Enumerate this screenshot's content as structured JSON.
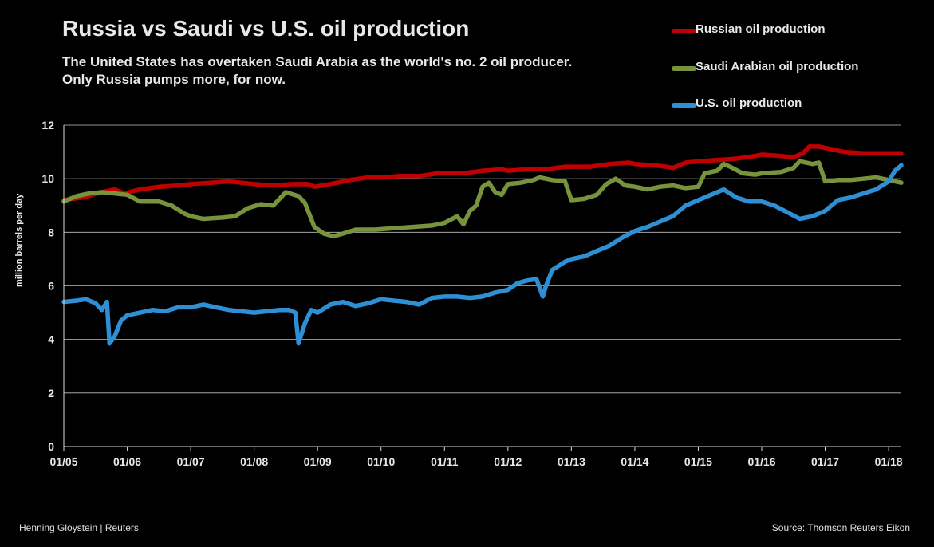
{
  "header": {
    "title": "Russia vs Saudi vs U.S. oil production",
    "subtitle_line1": "The United States has overtaken Saudi Arabia as the world's no. 2 oil producer.",
    "subtitle_line2": "Only Russia pumps more, for now."
  },
  "footer": {
    "credit": "Henning Gloystein | Reuters",
    "source": "Source: Thomson Reuters Eikon"
  },
  "colors": {
    "russia": "#c00000",
    "saudi": "#77933c",
    "us": "#2e8fd4",
    "grid": "#bfbfbf",
    "background": "#000000"
  },
  "chart_data": {
    "type": "line",
    "title": "Russia vs Saudi vs U.S. oil production",
    "xlabel": "",
    "ylabel": "million barrels per day",
    "ylim": [
      0,
      12
    ],
    "yticks": [
      0,
      2,
      4,
      6,
      8,
      10,
      12
    ],
    "xlim": [
      2005.0,
      2018.2
    ],
    "xticks": [
      {
        "value": 2005,
        "label": "01/05"
      },
      {
        "value": 2006,
        "label": "01/06"
      },
      {
        "value": 2007,
        "label": "01/07"
      },
      {
        "value": 2008,
        "label": "01/08"
      },
      {
        "value": 2009,
        "label": "01/09"
      },
      {
        "value": 2010,
        "label": "01/10"
      },
      {
        "value": 2011,
        "label": "01/11"
      },
      {
        "value": 2012,
        "label": "01/12"
      },
      {
        "value": 2013,
        "label": "01/13"
      },
      {
        "value": 2014,
        "label": "01/14"
      },
      {
        "value": 2015,
        "label": "01/15"
      },
      {
        "value": 2016,
        "label": "01/16"
      },
      {
        "value": 2017,
        "label": "01/17"
      },
      {
        "value": 2018,
        "label": "01/18"
      }
    ],
    "grid": "horizontal",
    "legend_position": "top-right",
    "series": [
      {
        "name": "Russian oil production",
        "key": "russia",
        "points": [
          [
            2005.0,
            9.2
          ],
          [
            2005.3,
            9.3
          ],
          [
            2005.6,
            9.5
          ],
          [
            2005.8,
            9.6
          ],
          [
            2005.95,
            9.45
          ],
          [
            2006.2,
            9.6
          ],
          [
            2006.5,
            9.7
          ],
          [
            2006.8,
            9.75
          ],
          [
            2007.0,
            9.8
          ],
          [
            2007.3,
            9.85
          ],
          [
            2007.6,
            9.9
          ],
          [
            2007.8,
            9.85
          ],
          [
            2008.0,
            9.8
          ],
          [
            2008.3,
            9.75
          ],
          [
            2008.6,
            9.8
          ],
          [
            2008.85,
            9.8
          ],
          [
            2008.95,
            9.7
          ],
          [
            2009.2,
            9.8
          ],
          [
            2009.5,
            9.95
          ],
          [
            2009.8,
            10.05
          ],
          [
            2010.0,
            10.05
          ],
          [
            2010.3,
            10.1
          ],
          [
            2010.6,
            10.1
          ],
          [
            2010.9,
            10.2
          ],
          [
            2011.0,
            10.2
          ],
          [
            2011.3,
            10.2
          ],
          [
            2011.6,
            10.3
          ],
          [
            2011.9,
            10.35
          ],
          [
            2012.0,
            10.3
          ],
          [
            2012.3,
            10.35
          ],
          [
            2012.6,
            10.35
          ],
          [
            2012.9,
            10.45
          ],
          [
            2013.0,
            10.45
          ],
          [
            2013.3,
            10.45
          ],
          [
            2013.6,
            10.55
          ],
          [
            2013.9,
            10.6
          ],
          [
            2014.0,
            10.55
          ],
          [
            2014.3,
            10.5
          ],
          [
            2014.5,
            10.45
          ],
          [
            2014.6,
            10.4
          ],
          [
            2014.8,
            10.6
          ],
          [
            2015.0,
            10.65
          ],
          [
            2015.3,
            10.7
          ],
          [
            2015.6,
            10.75
          ],
          [
            2015.9,
            10.85
          ],
          [
            2016.0,
            10.9
          ],
          [
            2016.3,
            10.85
          ],
          [
            2016.5,
            10.8
          ],
          [
            2016.65,
            10.95
          ],
          [
            2016.75,
            11.2
          ],
          [
            2016.9,
            11.2
          ],
          [
            2017.0,
            11.15
          ],
          [
            2017.3,
            11.0
          ],
          [
            2017.6,
            10.95
          ],
          [
            2017.8,
            10.95
          ],
          [
            2018.0,
            10.95
          ],
          [
            2018.2,
            10.95
          ]
        ]
      },
      {
        "name": "Saudi Arabian oil production",
        "key": "saudi",
        "points": [
          [
            2005.0,
            9.15
          ],
          [
            2005.2,
            9.35
          ],
          [
            2005.4,
            9.45
          ],
          [
            2005.6,
            9.5
          ],
          [
            2005.8,
            9.45
          ],
          [
            2006.0,
            9.4
          ],
          [
            2006.2,
            9.15
          ],
          [
            2006.5,
            9.15
          ],
          [
            2006.7,
            9.0
          ],
          [
            2006.9,
            8.7
          ],
          [
            2007.0,
            8.6
          ],
          [
            2007.2,
            8.5
          ],
          [
            2007.5,
            8.55
          ],
          [
            2007.7,
            8.6
          ],
          [
            2007.9,
            8.9
          ],
          [
            2008.1,
            9.05
          ],
          [
            2008.3,
            9.0
          ],
          [
            2008.5,
            9.5
          ],
          [
            2008.7,
            9.35
          ],
          [
            2008.8,
            9.1
          ],
          [
            2008.95,
            8.2
          ],
          [
            2009.1,
            7.95
          ],
          [
            2009.25,
            7.85
          ],
          [
            2009.4,
            7.95
          ],
          [
            2009.6,
            8.1
          ],
          [
            2009.9,
            8.1
          ],
          [
            2010.2,
            8.15
          ],
          [
            2010.5,
            8.2
          ],
          [
            2010.8,
            8.25
          ],
          [
            2011.0,
            8.35
          ],
          [
            2011.2,
            8.6
          ],
          [
            2011.3,
            8.3
          ],
          [
            2011.4,
            8.8
          ],
          [
            2011.5,
            9.0
          ],
          [
            2011.6,
            9.7
          ],
          [
            2011.7,
            9.85
          ],
          [
            2011.8,
            9.5
          ],
          [
            2011.9,
            9.4
          ],
          [
            2012.0,
            9.8
          ],
          [
            2012.2,
            9.85
          ],
          [
            2012.4,
            9.95
          ],
          [
            2012.5,
            10.05
          ],
          [
            2012.7,
            9.95
          ],
          [
            2012.9,
            9.9
          ],
          [
            2013.0,
            9.2
          ],
          [
            2013.2,
            9.25
          ],
          [
            2013.4,
            9.4
          ],
          [
            2013.55,
            9.8
          ],
          [
            2013.7,
            10.0
          ],
          [
            2013.85,
            9.75
          ],
          [
            2014.0,
            9.7
          ],
          [
            2014.2,
            9.6
          ],
          [
            2014.4,
            9.7
          ],
          [
            2014.6,
            9.75
          ],
          [
            2014.8,
            9.65
          ],
          [
            2015.0,
            9.7
          ],
          [
            2015.1,
            10.2
          ],
          [
            2015.3,
            10.3
          ],
          [
            2015.4,
            10.55
          ],
          [
            2015.5,
            10.45
          ],
          [
            2015.7,
            10.2
          ],
          [
            2015.9,
            10.15
          ],
          [
            2016.0,
            10.2
          ],
          [
            2016.3,
            10.25
          ],
          [
            2016.5,
            10.4
          ],
          [
            2016.6,
            10.65
          ],
          [
            2016.8,
            10.55
          ],
          [
            2016.9,
            10.6
          ],
          [
            2017.0,
            9.9
          ],
          [
            2017.2,
            9.95
          ],
          [
            2017.4,
            9.95
          ],
          [
            2017.6,
            10.0
          ],
          [
            2017.8,
            10.05
          ],
          [
            2018.0,
            9.95
          ],
          [
            2018.2,
            9.85
          ]
        ]
      },
      {
        "name": "U.S. oil production",
        "key": "us",
        "points": [
          [
            2005.0,
            5.4
          ],
          [
            2005.2,
            5.45
          ],
          [
            2005.35,
            5.5
          ],
          [
            2005.5,
            5.35
          ],
          [
            2005.6,
            5.1
          ],
          [
            2005.68,
            5.4
          ],
          [
            2005.72,
            3.85
          ],
          [
            2005.8,
            4.1
          ],
          [
            2005.9,
            4.7
          ],
          [
            2006.0,
            4.9
          ],
          [
            2006.2,
            5.0
          ],
          [
            2006.4,
            5.1
          ],
          [
            2006.6,
            5.05
          ],
          [
            2006.8,
            5.2
          ],
          [
            2007.0,
            5.2
          ],
          [
            2007.2,
            5.3
          ],
          [
            2007.4,
            5.2
          ],
          [
            2007.6,
            5.1
          ],
          [
            2007.8,
            5.05
          ],
          [
            2008.0,
            5.0
          ],
          [
            2008.2,
            5.05
          ],
          [
            2008.4,
            5.1
          ],
          [
            2008.55,
            5.1
          ],
          [
            2008.65,
            5.0
          ],
          [
            2008.7,
            3.85
          ],
          [
            2008.8,
            4.6
          ],
          [
            2008.9,
            5.1
          ],
          [
            2009.0,
            5.0
          ],
          [
            2009.2,
            5.3
          ],
          [
            2009.4,
            5.4
          ],
          [
            2009.6,
            5.25
          ],
          [
            2009.8,
            5.35
          ],
          [
            2010.0,
            5.5
          ],
          [
            2010.2,
            5.45
          ],
          [
            2010.4,
            5.4
          ],
          [
            2010.6,
            5.3
          ],
          [
            2010.8,
            5.55
          ],
          [
            2011.0,
            5.6
          ],
          [
            2011.2,
            5.6
          ],
          [
            2011.4,
            5.55
          ],
          [
            2011.6,
            5.6
          ],
          [
            2011.8,
            5.75
          ],
          [
            2012.0,
            5.85
          ],
          [
            2012.15,
            6.1
          ],
          [
            2012.3,
            6.2
          ],
          [
            2012.45,
            6.25
          ],
          [
            2012.55,
            5.6
          ],
          [
            2012.6,
            6.0
          ],
          [
            2012.7,
            6.6
          ],
          [
            2012.9,
            6.9
          ],
          [
            2013.0,
            7.0
          ],
          [
            2013.2,
            7.1
          ],
          [
            2013.4,
            7.3
          ],
          [
            2013.6,
            7.5
          ],
          [
            2013.8,
            7.8
          ],
          [
            2014.0,
            8.05
          ],
          [
            2014.2,
            8.2
          ],
          [
            2014.4,
            8.4
          ],
          [
            2014.6,
            8.6
          ],
          [
            2014.8,
            9.0
          ],
          [
            2015.0,
            9.2
          ],
          [
            2015.2,
            9.4
          ],
          [
            2015.4,
            9.6
          ],
          [
            2015.6,
            9.3
          ],
          [
            2015.8,
            9.15
          ],
          [
            2016.0,
            9.15
          ],
          [
            2016.2,
            9.0
          ],
          [
            2016.4,
            8.75
          ],
          [
            2016.6,
            8.5
          ],
          [
            2016.8,
            8.6
          ],
          [
            2017.0,
            8.8
          ],
          [
            2017.2,
            9.2
          ],
          [
            2017.4,
            9.3
          ],
          [
            2017.6,
            9.45
          ],
          [
            2017.8,
            9.6
          ],
          [
            2018.0,
            9.9
          ],
          [
            2018.1,
            10.3
          ],
          [
            2018.2,
            10.5
          ]
        ]
      }
    ]
  }
}
